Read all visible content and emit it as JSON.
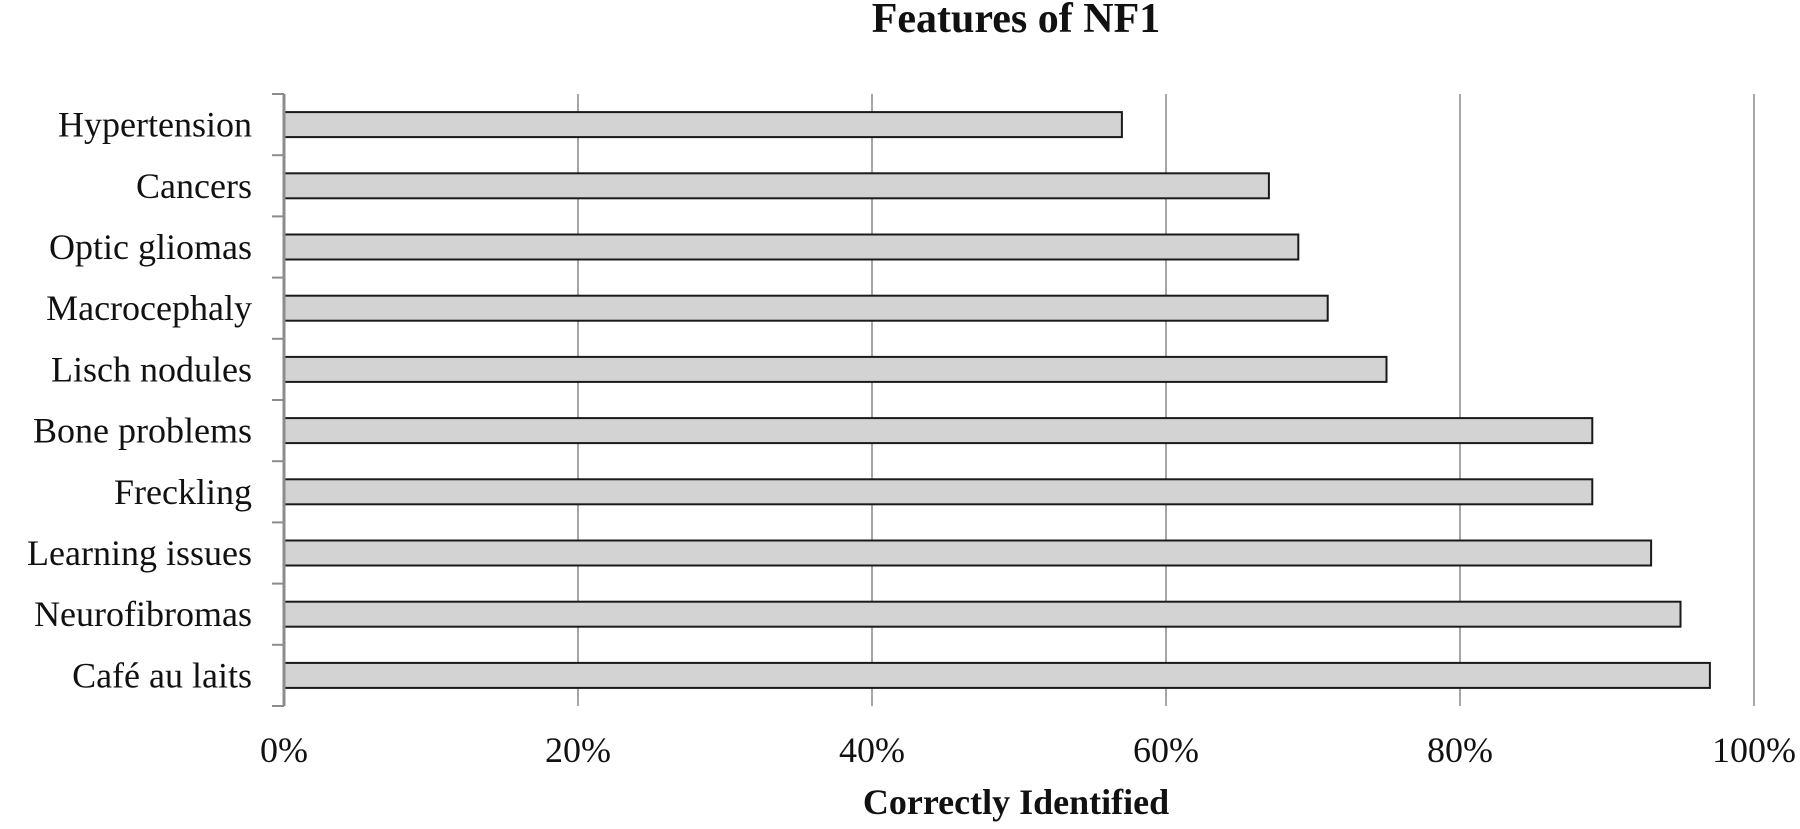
{
  "chart_data": {
    "type": "bar",
    "orientation": "horizontal",
    "title": "Features of NF1",
    "xlabel": "Correctly Identified",
    "ylabel": "",
    "categories": [
      "Hypertension",
      "Cancers",
      "Optic gliomas",
      "Macrocephaly",
      "Lisch nodules",
      "Bone problems",
      "Freckling",
      "Learning issues",
      "Neurofibromas",
      "Café au laits"
    ],
    "values": [
      57,
      67,
      69,
      71,
      75,
      89,
      89,
      93,
      95,
      97
    ],
    "xlim": [
      0,
      100
    ],
    "xticks": [
      0,
      20,
      40,
      60,
      80,
      100
    ],
    "xtick_labels": [
      "0%",
      "20%",
      "40%",
      "60%",
      "80%",
      "100%"
    ],
    "grid": "vertical",
    "legend": "none",
    "colors": {
      "bar_fill": "#d3d3d3",
      "bar_stroke": "#1a1a1a",
      "grid": "#a6a6a6",
      "axis": "#8c8c8c"
    }
  }
}
